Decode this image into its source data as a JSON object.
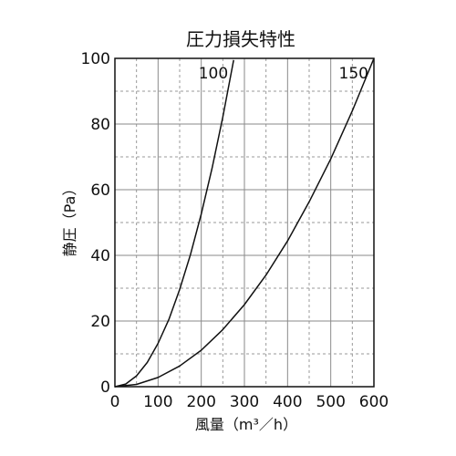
{
  "chart_data": {
    "type": "line",
    "title": "圧力損失特性",
    "xlabel": "風量（m³／h）",
    "ylabel": "静圧（Pa）",
    "xlim": [
      0,
      600
    ],
    "ylim": [
      0,
      100
    ],
    "x_ticks": [
      "0",
      "100",
      "200",
      "300",
      "400",
      "500",
      "600"
    ],
    "y_ticks": [
      "0",
      "20",
      "40",
      "60",
      "80",
      "100"
    ],
    "grid": true,
    "series": [
      {
        "name": "100",
        "x": [
          0,
          25,
          50,
          75,
          100,
          125,
          150,
          175,
          200,
          225,
          250,
          275
        ],
        "y": [
          0,
          0.8,
          3.3,
          7.4,
          13.2,
          20.5,
          29.6,
          40.2,
          52.6,
          66.5,
          82.1,
          99.5
        ]
      },
      {
        "name": "150",
        "x": [
          0,
          50,
          100,
          150,
          200,
          250,
          300,
          350,
          400,
          450,
          500,
          550,
          600
        ],
        "y": [
          0,
          0.7,
          2.8,
          6.3,
          11.1,
          17.4,
          25.0,
          34.0,
          44.4,
          56.3,
          69.4,
          84.0,
          100
        ]
      }
    ]
  }
}
